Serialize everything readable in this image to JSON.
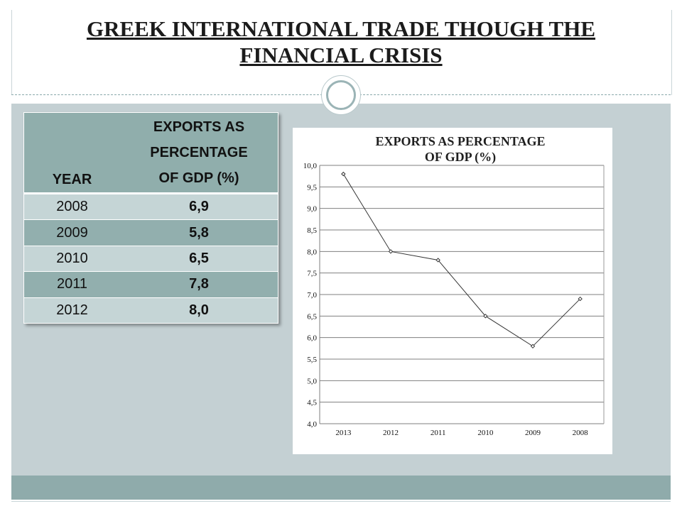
{
  "slide": {
    "title_line1": "GREEK INTERNATIONAL TRADE THOUGH THE",
    "title_line2": "FINANCIAL CRISIS"
  },
  "table": {
    "header_year": "YEAR",
    "header_exports": [
      "EXPORTS AS",
      "PERCENTAGE",
      "OF GDP (%)"
    ],
    "rows": [
      {
        "year": "2008",
        "value": "6,9"
      },
      {
        "year": "2009",
        "value": "5,8"
      },
      {
        "year": "2010",
        "value": "6,5"
      },
      {
        "year": "2011",
        "value": "7,8"
      },
      {
        "year": "2012",
        "value": "8,0"
      }
    ]
  },
  "colors": {
    "header": "#90aeac",
    "row_light": "#c5d5d6",
    "row_dark": "#92afae",
    "background": "#c4d0d3",
    "footer": "#8fabab"
  },
  "chart_data": {
    "type": "line",
    "title_lines": [
      "EXPORTS AS PERCENTAGE",
      "OF GDP (%)"
    ],
    "categories": [
      "2013",
      "2012",
      "2011",
      "2010",
      "2009",
      "2008"
    ],
    "values": [
      9.8,
      8.0,
      7.8,
      6.5,
      5.8,
      6.9
    ],
    "ylim": [
      4.0,
      10.0
    ],
    "ytick_labels": [
      "4,0",
      "4,5",
      "5,0",
      "5,5",
      "6,0",
      "6,5",
      "7,0",
      "7,5",
      "8,0",
      "8,5",
      "9,0",
      "9,5",
      "10,0"
    ],
    "grid": true,
    "legend": "none"
  }
}
